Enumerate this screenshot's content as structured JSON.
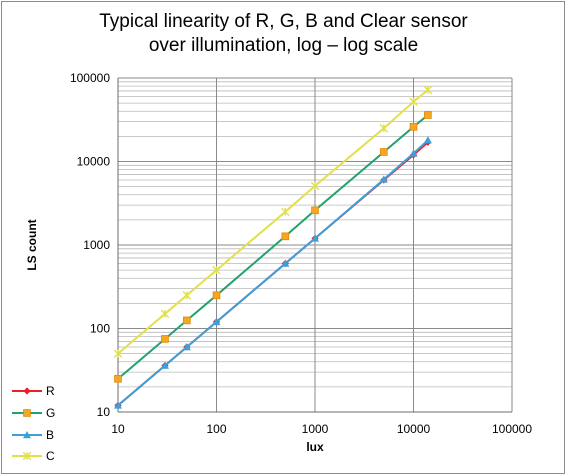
{
  "chart_data": {
    "type": "line",
    "title_line1": "Typical linearity of R, G, B and Clear sensor",
    "title_line2": "over illumination, log – log scale",
    "xlabel": "lux",
    "ylabel": "LS count",
    "x_scale": "log",
    "y_scale": "log",
    "xlim": [
      10,
      100000
    ],
    "ylim": [
      10,
      100000
    ],
    "x_ticks": [
      "10",
      "100",
      "1000",
      "10000",
      "100000"
    ],
    "y_ticks": [
      "100000",
      "10000",
      "1000",
      "100",
      "10"
    ],
    "grid": true,
    "legend_position": "bottom-left",
    "series": [
      {
        "name": "R",
        "color": "#e8202a",
        "marker": "diamond",
        "x": [
          10,
          30,
          50,
          100,
          500,
          1000,
          5000,
          10000,
          14000
        ],
        "y": [
          12,
          36,
          60,
          120,
          600,
          1200,
          6000,
          12000,
          17000
        ]
      },
      {
        "name": "G",
        "color": "#22a36b",
        "marker": "square",
        "x": [
          10,
          30,
          50,
          100,
          500,
          1000,
          5000,
          10000,
          14000
        ],
        "y": [
          25,
          75,
          125,
          250,
          1270,
          2600,
          13000,
          26000,
          36000
        ]
      },
      {
        "name": "B",
        "color": "#3da0d8",
        "marker": "triangle",
        "x": [
          10,
          30,
          50,
          100,
          500,
          1000,
          5000,
          10000,
          14000
        ],
        "y": [
          12,
          36,
          60,
          120,
          600,
          1200,
          6100,
          12500,
          18000
        ]
      },
      {
        "name": "C",
        "color": "#e2e04a",
        "marker": "star",
        "x": [
          10,
          30,
          50,
          100,
          500,
          1000,
          5000,
          10000,
          14000
        ],
        "y": [
          50,
          150,
          250,
          500,
          2500,
          5100,
          25000,
          52000,
          72000
        ]
      }
    ]
  }
}
